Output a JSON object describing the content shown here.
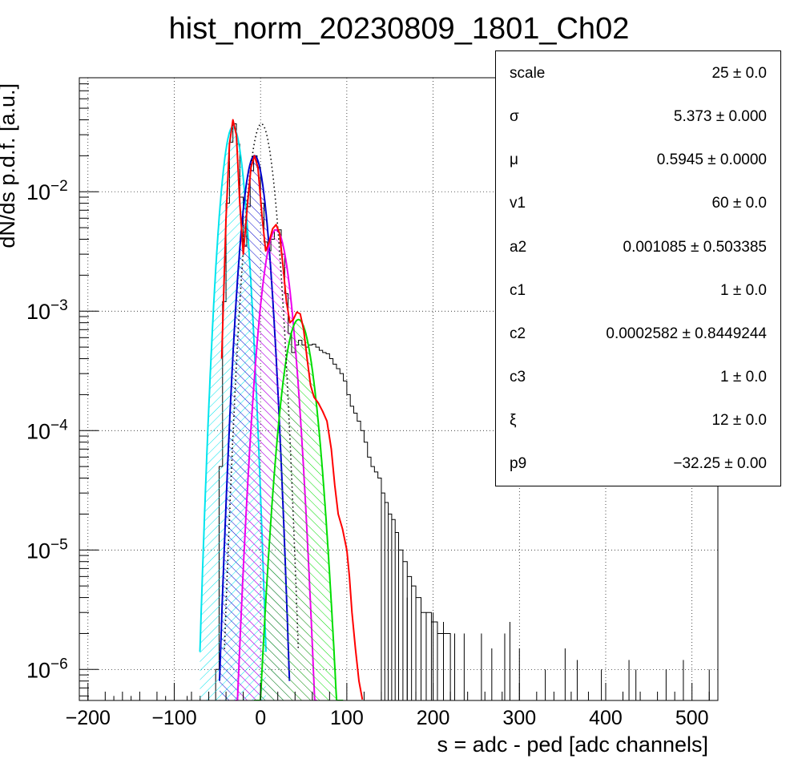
{
  "chart_data": {
    "type": "line",
    "title": "hist_norm_20230809_1801_Ch02",
    "xlabel": "s = adc - ped [adc channels]",
    "ylabel": "dN/ds p.d.f. [a.u.]",
    "xlim": [
      -210,
      530
    ],
    "ylim": [
      5.5e-07,
      0.09
    ],
    "yscale": "log",
    "grid": true,
    "x_ticks": [
      "−200",
      "−100",
      "0",
      "100",
      "200",
      "300",
      "400",
      "500"
    ],
    "x_tick_values": [
      -200,
      -100,
      0,
      100,
      200,
      300,
      400,
      500
    ],
    "y_ticks": [
      {
        "value": 1e-06,
        "base": "10",
        "exp": "−6"
      },
      {
        "value": 1e-05,
        "base": "10",
        "exp": "−5"
      },
      {
        "value": 0.0001,
        "base": "10",
        "exp": "−4"
      },
      {
        "value": 0.001,
        "base": "10",
        "exp": "−3"
      },
      {
        "value": 0.01,
        "base": "10",
        "exp": "−2"
      }
    ],
    "components": [
      {
        "color": "#00e5ee",
        "hatch": "cyan-hatch",
        "center": -32,
        "sigma": 8.5,
        "amplitude": 0.035
      },
      {
        "color": "#0000cc",
        "hatch": "blue-hatch",
        "center": -7,
        "sigma": 9.0,
        "amplitude": 0.02
      },
      {
        "color": "#ee00ee",
        "hatch": "magenta-hatch",
        "center": 18,
        "sigma": 10.5,
        "amplitude": 0.0048
      },
      {
        "color": "#00dd00",
        "hatch": "green-hatch",
        "center": 44,
        "sigma": 11.5,
        "amplitude": 0.00085
      }
    ],
    "total_fit": {
      "color": "#ff0000",
      "points": [
        [
          -45,
          0.0004
        ],
        [
          -40,
          0.006
        ],
        [
          -36,
          0.025
        ],
        [
          -32,
          0.04
        ],
        [
          -28,
          0.03
        ],
        [
          -24,
          0.008
        ],
        [
          -20,
          0.003
        ],
        [
          -15,
          0.008
        ],
        [
          -11,
          0.016
        ],
        [
          -7,
          0.02
        ],
        [
          -3,
          0.016
        ],
        [
          2,
          0.006
        ],
        [
          6,
          0.0032
        ],
        [
          10,
          0.0038
        ],
        [
          14,
          0.0049
        ],
        [
          18,
          0.0053
        ],
        [
          22,
          0.0045
        ],
        [
          26,
          0.0024
        ],
        [
          30,
          0.0012
        ],
        [
          34,
          0.0008
        ],
        [
          38,
          0.00085
        ],
        [
          42,
          0.00098
        ],
        [
          46,
          0.00095
        ],
        [
          50,
          0.0007
        ],
        [
          54,
          0.0004
        ],
        [
          58,
          0.00024
        ],
        [
          62,
          0.00019
        ],
        [
          67,
          0.00017
        ],
        [
          72,
          0.000145
        ],
        [
          77,
          0.00012
        ],
        [
          82,
          7e-05
        ],
        [
          86,
          3.5e-05
        ],
        [
          90,
          2e-05
        ],
        [
          95,
          1.5e-05
        ],
        [
          100,
          1e-05
        ],
        [
          103,
          6e-06
        ],
        [
          106,
          3e-06
        ],
        [
          110,
          1.5e-06
        ],
        [
          114,
          8e-07
        ],
        [
          118,
          5.6e-07
        ]
      ]
    },
    "pedestal_fit": {
      "color": "#000000",
      "style": "dotted",
      "center": 1,
      "sigma": 9.5,
      "amplitude": 0.037
    },
    "data_hist": {
      "color": "#000000",
      "points": [
        [
          -52,
          1e-06
        ],
        [
          -48,
          5e-05
        ],
        [
          -44,
          0.0012
        ],
        [
          -40,
          0.008
        ],
        [
          -36,
          0.026
        ],
        [
          -32,
          0.037
        ],
        [
          -28,
          0.025
        ],
        [
          -24,
          0.009
        ],
        [
          -20,
          0.0035
        ],
        [
          -16,
          0.0075
        ],
        [
          -12,
          0.015
        ],
        [
          -8,
          0.02
        ],
        [
          -4,
          0.016
        ],
        [
          0,
          0.008
        ],
        [
          4,
          0.0038
        ],
        [
          8,
          0.0032
        ],
        [
          12,
          0.004
        ],
        [
          16,
          0.0048
        ],
        [
          20,
          0.0048
        ],
        [
          24,
          0.003
        ],
        [
          28,
          0.0014
        ],
        [
          32,
          0.00065
        ],
        [
          36,
          0.00045
        ],
        [
          40,
          0.00052
        ],
        [
          44,
          0.00057
        ],
        [
          48,
          0.00052
        ],
        [
          52,
          0.0005
        ],
        [
          56,
          0.00052
        ],
        [
          60,
          0.00053
        ],
        [
          64,
          0.0005
        ],
        [
          68,
          0.00047
        ],
        [
          72,
          0.00045
        ],
        [
          76,
          0.00044
        ],
        [
          80,
          0.0004
        ],
        [
          84,
          0.00036
        ],
        [
          88,
          0.00033
        ],
        [
          92,
          0.0003
        ],
        [
          96,
          0.00026
        ],
        [
          100,
          0.0002
        ],
        [
          104,
          0.00016
        ],
        [
          108,
          0.00014
        ],
        [
          112,
          0.00012
        ],
        [
          116,
          0.0001
        ],
        [
          120,
          8e-05
        ],
        [
          124,
          6e-05
        ],
        [
          128,
          5e-05
        ],
        [
          132,
          4.5e-05
        ],
        [
          136,
          4e-05
        ],
        [
          140,
          3e-05
        ],
        [
          144,
          2.5e-05
        ],
        [
          148,
          2e-05
        ],
        [
          152,
          1.8e-05
        ],
        [
          156,
          1.4e-05
        ],
        [
          160,
          1e-05
        ],
        [
          165,
          8e-06
        ],
        [
          170,
          6e-06
        ],
        [
          175,
          5e-06
        ],
        [
          180,
          4e-06
        ],
        [
          186,
          3e-06
        ],
        [
          192,
          3e-06
        ],
        [
          198,
          2.5e-06
        ],
        [
          205,
          2e-06
        ],
        [
          212,
          2e-06
        ],
        [
          220,
          1.5e-06
        ]
      ],
      "sparse_bins": [
        [
          -200,
          6e-07
        ],
        [
          -170,
          6e-07
        ],
        [
          -150,
          6e-07
        ],
        [
          -110,
          6e-07
        ],
        [
          -85,
          6e-07
        ],
        [
          -70,
          6e-07
        ],
        [
          170,
          4e-06
        ],
        [
          200,
          3e-06
        ],
        [
          212,
          2.5e-06
        ],
        [
          225,
          2e-06
        ],
        [
          236,
          2e-06
        ],
        [
          256,
          2e-06
        ],
        [
          268,
          1.5e-06
        ],
        [
          283,
          2e-06
        ],
        [
          289,
          2.5e-06
        ],
        [
          300,
          1.5e-06
        ],
        [
          330,
          1e-06
        ],
        [
          353,
          1.5e-06
        ],
        [
          367,
          1.2e-06
        ],
        [
          395,
          1e-06
        ],
        [
          427,
          1.2e-06
        ],
        [
          435,
          1e-06
        ],
        [
          470,
          1e-06
        ],
        [
          490,
          1.2e-06
        ],
        [
          520,
          1e-06
        ]
      ]
    }
  },
  "stats": {
    "rows": [
      {
        "name": "scale",
        "value": "25 ± 0.0"
      },
      {
        "name": "σ",
        "value": "5.373 ± 0.000"
      },
      {
        "name": "μ",
        "value": "0.5945 ± 0.0000"
      },
      {
        "name": "v1",
        "value": "60 ± 0.0"
      },
      {
        "name": "a2",
        "value": "0.001085 ± 0.503385"
      },
      {
        "name": "c1",
        "value": "1 ± 0.0"
      },
      {
        "name": "c2",
        "value": "0.0002582 ± 0.8449244"
      },
      {
        "name": "c3",
        "value": "1 ± 0.0"
      },
      {
        "name": "ξ",
        "value": "12 ± 0.0"
      },
      {
        "name": "p9",
        "value": "−32.25 ± 0.00"
      }
    ]
  }
}
